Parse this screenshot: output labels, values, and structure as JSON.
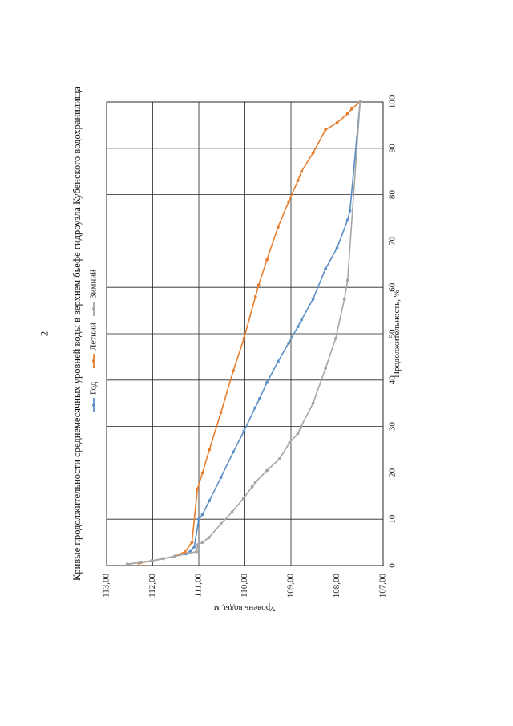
{
  "page": {
    "number": "2"
  },
  "chart_data": {
    "type": "line",
    "title": "Кривые продолжительности среднемесячных уровней воды в верхнем бьефе гидроузла Кубенского водохранилища",
    "xlabel": "Продолжительность, %",
    "ylabel": "Уровень воды, м",
    "xlim": [
      0,
      100
    ],
    "ylim": [
      107,
      113
    ],
    "y_reversed": true,
    "x_ticks": [
      "0",
      "10",
      "20",
      "30",
      "40",
      "50",
      "60",
      "70",
      "80",
      "90",
      "100"
    ],
    "y_ticks": [
      "113,00",
      "112,00",
      "111,00",
      "110,00",
      "109,00",
      "108,00",
      "107,00"
    ],
    "grid": true,
    "legend_position": "top",
    "orientation": "rotated 90° counter-clockwise on page",
    "series": [
      {
        "name": "Год",
        "color": "#5b8fc7",
        "points": [
          [
            0.3,
            112.55
          ],
          [
            0.7,
            112.25
          ],
          [
            1.0,
            112.02
          ],
          [
            1.5,
            111.77
          ],
          [
            2.0,
            111.52
          ],
          [
            2.5,
            111.28
          ],
          [
            3.2,
            111.18
          ],
          [
            4.0,
            111.1
          ],
          [
            10.0,
            111.0
          ],
          [
            11.0,
            110.92
          ],
          [
            14.0,
            110.77
          ],
          [
            19.0,
            110.52
          ],
          [
            24.5,
            110.25
          ],
          [
            29.0,
            110.02
          ],
          [
            34.0,
            109.78
          ],
          [
            36.0,
            109.68
          ],
          [
            39.5,
            109.52
          ],
          [
            44.0,
            109.28
          ],
          [
            48.0,
            109.05
          ],
          [
            51.5,
            108.85
          ],
          [
            53.0,
            108.77
          ],
          [
            57.5,
            108.52
          ],
          [
            64.0,
            108.25
          ],
          [
            68.5,
            108.0
          ],
          [
            74.5,
            107.77
          ],
          [
            76.5,
            107.72
          ],
          [
            100.0,
            107.5
          ]
        ]
      },
      {
        "name": "Летний",
        "color": "#e87d2c",
        "points": [
          [
            0.5,
            112.3
          ],
          [
            1.0,
            112.02
          ],
          [
            1.5,
            111.77
          ],
          [
            2.0,
            111.52
          ],
          [
            3.0,
            111.3
          ],
          [
            5.0,
            111.15
          ],
          [
            16.5,
            111.03
          ],
          [
            20.0,
            110.92
          ],
          [
            25.0,
            110.77
          ],
          [
            33.0,
            110.52
          ],
          [
            42.0,
            110.25
          ],
          [
            49.0,
            110.02
          ],
          [
            58.0,
            109.77
          ],
          [
            60.5,
            109.7
          ],
          [
            66.0,
            109.52
          ],
          [
            73.0,
            109.28
          ],
          [
            78.5,
            109.05
          ],
          [
            83.0,
            108.85
          ],
          [
            85.0,
            108.77
          ],
          [
            89.0,
            108.52
          ],
          [
            94.0,
            108.25
          ],
          [
            95.5,
            108.0
          ],
          [
            97.5,
            107.77
          ],
          [
            98.5,
            107.68
          ],
          [
            100.0,
            107.5
          ]
        ]
      },
      {
        "name": "Зимний",
        "color": "#a5a5a5",
        "points": [
          [
            0.3,
            112.55
          ],
          [
            0.7,
            112.3
          ],
          [
            1.0,
            112.02
          ],
          [
            1.5,
            111.77
          ],
          [
            2.0,
            111.52
          ],
          [
            3.0,
            111.05
          ],
          [
            4.5,
            111.02
          ],
          [
            5.0,
            110.92
          ],
          [
            6.0,
            110.78
          ],
          [
            9.0,
            110.52
          ],
          [
            11.5,
            110.28
          ],
          [
            14.5,
            110.03
          ],
          [
            17.0,
            109.84
          ],
          [
            18.0,
            109.77
          ],
          [
            20.5,
            109.52
          ],
          [
            23.0,
            109.25
          ],
          [
            26.5,
            109.03
          ],
          [
            28.5,
            108.85
          ],
          [
            30.0,
            108.78
          ],
          [
            35.0,
            108.52
          ],
          [
            42.5,
            108.25
          ],
          [
            49.0,
            108.03
          ],
          [
            57.5,
            107.84
          ],
          [
            61.5,
            107.77
          ],
          [
            100.0,
            107.5
          ]
        ]
      }
    ]
  }
}
